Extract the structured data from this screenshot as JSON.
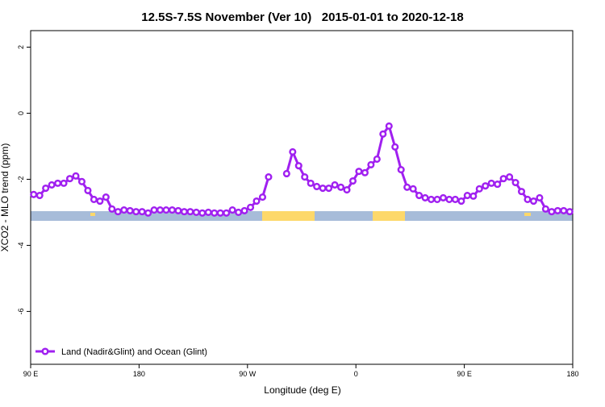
{
  "chart_data": {
    "type": "line",
    "title": "12.5S-7.5S November (Ver 10)   2015-01-01 to 2020-12-18",
    "x_label": "Longitude (deg E)",
    "y_label": "XCO2 - MLO trend (ppm)",
    "x": [
      92.5,
      97.5,
      102.5,
      107.5,
      112.5,
      117.5,
      122.5,
      127.5,
      132.5,
      137.5,
      142.5,
      147.5,
      152.5,
      157.5,
      162.5,
      167.5,
      172.5,
      177.5,
      182.5,
      187.5,
      192.5,
      197.5,
      202.5,
      207.5,
      212.5,
      217.5,
      222.5,
      227.5,
      232.5,
      237.5,
      242.5,
      247.5,
      252.5,
      257.5,
      262.5,
      267.5,
      272.5,
      277.5,
      282.5,
      287.5,
      292.5,
      297.5,
      302.5,
      307.5,
      312.5,
      317.5,
      322.5,
      327.5,
      332.5,
      337.5,
      342.5,
      347.5,
      352.5,
      357.5,
      362.5,
      367.5,
      372.5,
      377.5,
      382.5,
      387.5,
      392.5,
      397.5,
      402.5,
      407.5,
      412.5,
      417.5,
      422.5,
      427.5,
      432.5,
      437.5,
      442.5,
      447.5,
      452.5,
      457.5,
      462.5,
      467.5,
      472.5,
      477.5,
      482.5,
      487.5,
      492.5,
      497.5,
      502.5,
      507.5,
      512.5,
      517.5,
      522.5,
      527.5,
      532.5,
      537.5
    ],
    "series": [
      {
        "name": "Land (Nadir&Glint) and Ocean (Glint)",
        "color": "#a020f0",
        "values": [
          -2.46,
          -2.49,
          -2.27,
          -2.17,
          -2.12,
          -2.12,
          -1.98,
          -1.9,
          -2.07,
          -2.34,
          -2.61,
          -2.66,
          -2.54,
          -2.9,
          -2.98,
          -2.93,
          -2.95,
          -2.98,
          -2.98,
          -3.02,
          -2.93,
          -2.93,
          -2.93,
          -2.93,
          -2.95,
          -2.98,
          -2.98,
          -3.0,
          -3.02,
          -3.0,
          -3.02,
          -3.02,
          -3.02,
          -2.93,
          -3.0,
          -2.95,
          -2.85,
          -2.66,
          -2.54,
          -1.93,
          null,
          null,
          -1.83,
          -1.17,
          -1.59,
          -1.93,
          -2.12,
          -2.22,
          -2.27,
          -2.27,
          -2.17,
          -2.24,
          -2.32,
          -2.05,
          -1.76,
          -1.8,
          -1.56,
          -1.39,
          -0.63,
          -0.39,
          -1.02,
          -1.71,
          -2.24,
          -2.29,
          -2.49,
          -2.56,
          -2.61,
          -2.61,
          -2.56,
          -2.61,
          -2.61,
          -2.66,
          -2.49,
          -2.51,
          -2.29,
          -2.2,
          -2.12,
          -2.15,
          -1.98,
          -1.93,
          -2.1,
          -2.37,
          -2.61,
          -2.66,
          -2.56,
          -2.9,
          -2.98,
          -2.95,
          -2.95,
          -2.98
        ]
      }
    ],
    "xlim": [
      90,
      540
    ],
    "xticks": [
      {
        "value": 90,
        "label": "90 E"
      },
      180,
      {
        "value": 270,
        "label": "90 W"
      },
      {
        "value": 360,
        "label": "0"
      },
      {
        "value": 450,
        "label": "90 E"
      },
      {
        "value": 540,
        "label": "180"
      }
    ],
    "ylim": [
      -7.6,
      2.5
    ],
    "yticks": [
      2,
      0,
      -2,
      -4,
      -6
    ],
    "legend": "bottom-left"
  }
}
